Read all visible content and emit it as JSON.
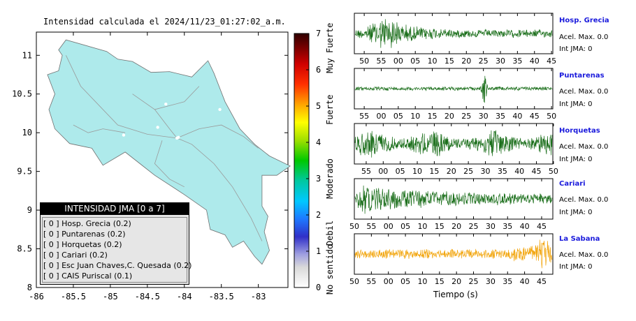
{
  "map": {
    "title": "Intensidad calculada el 2024/11/23_01:27:02_a.m.",
    "x_ticks": [
      "-86",
      "-85.5",
      "-85",
      "-84.5",
      "-84",
      "-83.5",
      "-83"
    ],
    "y_ticks": [
      "11",
      "10.5",
      "10",
      "9.5",
      "9",
      "8.5",
      "8"
    ],
    "xlim": [
      -86,
      -82.6
    ],
    "ylim": [
      8,
      11.3
    ],
    "land_color": "#aeeaeb",
    "stations_on_map": [
      {
        "lon": -84.36,
        "lat": 10.07
      },
      {
        "lon": -84.82,
        "lat": 9.97
      },
      {
        "lon": -84.25,
        "lat": 10.37
      },
      {
        "lon": -83.52,
        "lat": 10.3
      },
      {
        "lon": -84.08,
        "lat": 9.94
      },
      {
        "lon": -84.1,
        "lat": 9.93
      }
    ]
  },
  "colorbar": {
    "ticks": [
      "0",
      "1",
      "2",
      "3",
      "4",
      "5",
      "6",
      "7"
    ],
    "labels": [
      "No sentido",
      "Debil",
      "Moderado",
      "Fuerte",
      "Muy Fuerte"
    ],
    "range": [
      0,
      7
    ]
  },
  "legend": {
    "title": "INTENSIDAD JMA [0 a 7]",
    "rows": [
      "[ 0 ]  Hosp. Grecia (0.2)",
      "[ 0 ]  Puntarenas (0.2)",
      "[ 0 ]  Horquetas (0.2)",
      "[ 0 ]  Cariari (0.2)",
      "[ 0 ]  Esc Juan Chaves,C. Quesada (0.2)",
      "[ 0 ]  CAIS Puriscal (0.1)"
    ]
  },
  "stations": [
    {
      "name": "Hosp. Grecia",
      "acel": "Acel. Max. 0.0",
      "int": "Int JMA: 0",
      "ticks": [
        "50",
        "55",
        "00",
        "05",
        "10",
        "15",
        "20",
        "25",
        "30",
        "35",
        "40",
        "45"
      ],
      "tick_offset": 0.05,
      "color": "#1a6e1a",
      "envelope": "early"
    },
    {
      "name": "Puntarenas",
      "acel": "Acel. Max. 0.0",
      "int": "Int JMA: 0",
      "ticks": [
        "55",
        "00",
        "05",
        "10",
        "15",
        "20",
        "25",
        "30",
        "35",
        "40",
        "45",
        "50"
      ],
      "tick_offset": 0.05,
      "color": "#1a6e1a",
      "envelope": "spike"
    },
    {
      "name": "Horquetas",
      "acel": "Acel. Max. 0.0",
      "int": "Int JMA: 0",
      "ticks": [
        "55",
        "00",
        "05",
        "10",
        "15",
        "20",
        "25",
        "30",
        "35",
        "40",
        "45",
        "50"
      ],
      "tick_offset": 0.06,
      "color": "#1a6e1a",
      "envelope": "uniform"
    },
    {
      "name": "Cariari",
      "acel": "Acel. Max. 0.0",
      "int": "Int JMA: 0",
      "ticks": [
        "50",
        "55",
        "00",
        "05",
        "10",
        "15",
        "20",
        "25",
        "30",
        "35",
        "40",
        "45"
      ],
      "tick_offset": 0.0,
      "color": "#1a6e1a",
      "envelope": "decay"
    },
    {
      "name": "La Sabana",
      "acel": "Acel. Max. 0.0",
      "int": "Int JMA: 0",
      "ticks": [
        "50",
        "55",
        "00",
        "05",
        "10",
        "15",
        "20",
        "25",
        "30",
        "35",
        "40",
        "45"
      ],
      "tick_offset": 0.0,
      "color": "#f2a50c",
      "envelope": "late"
    }
  ],
  "chart_data": {
    "type": "map",
    "title": "Intensidad calculada el 2024/11/23_01:27:02_a.m.",
    "xlim": [
      -86,
      -82.6
    ],
    "ylim": [
      8,
      11.3
    ],
    "colorbar_range": [
      0,
      7
    ],
    "waveform_xlabel": "Tiempo (s)"
  }
}
